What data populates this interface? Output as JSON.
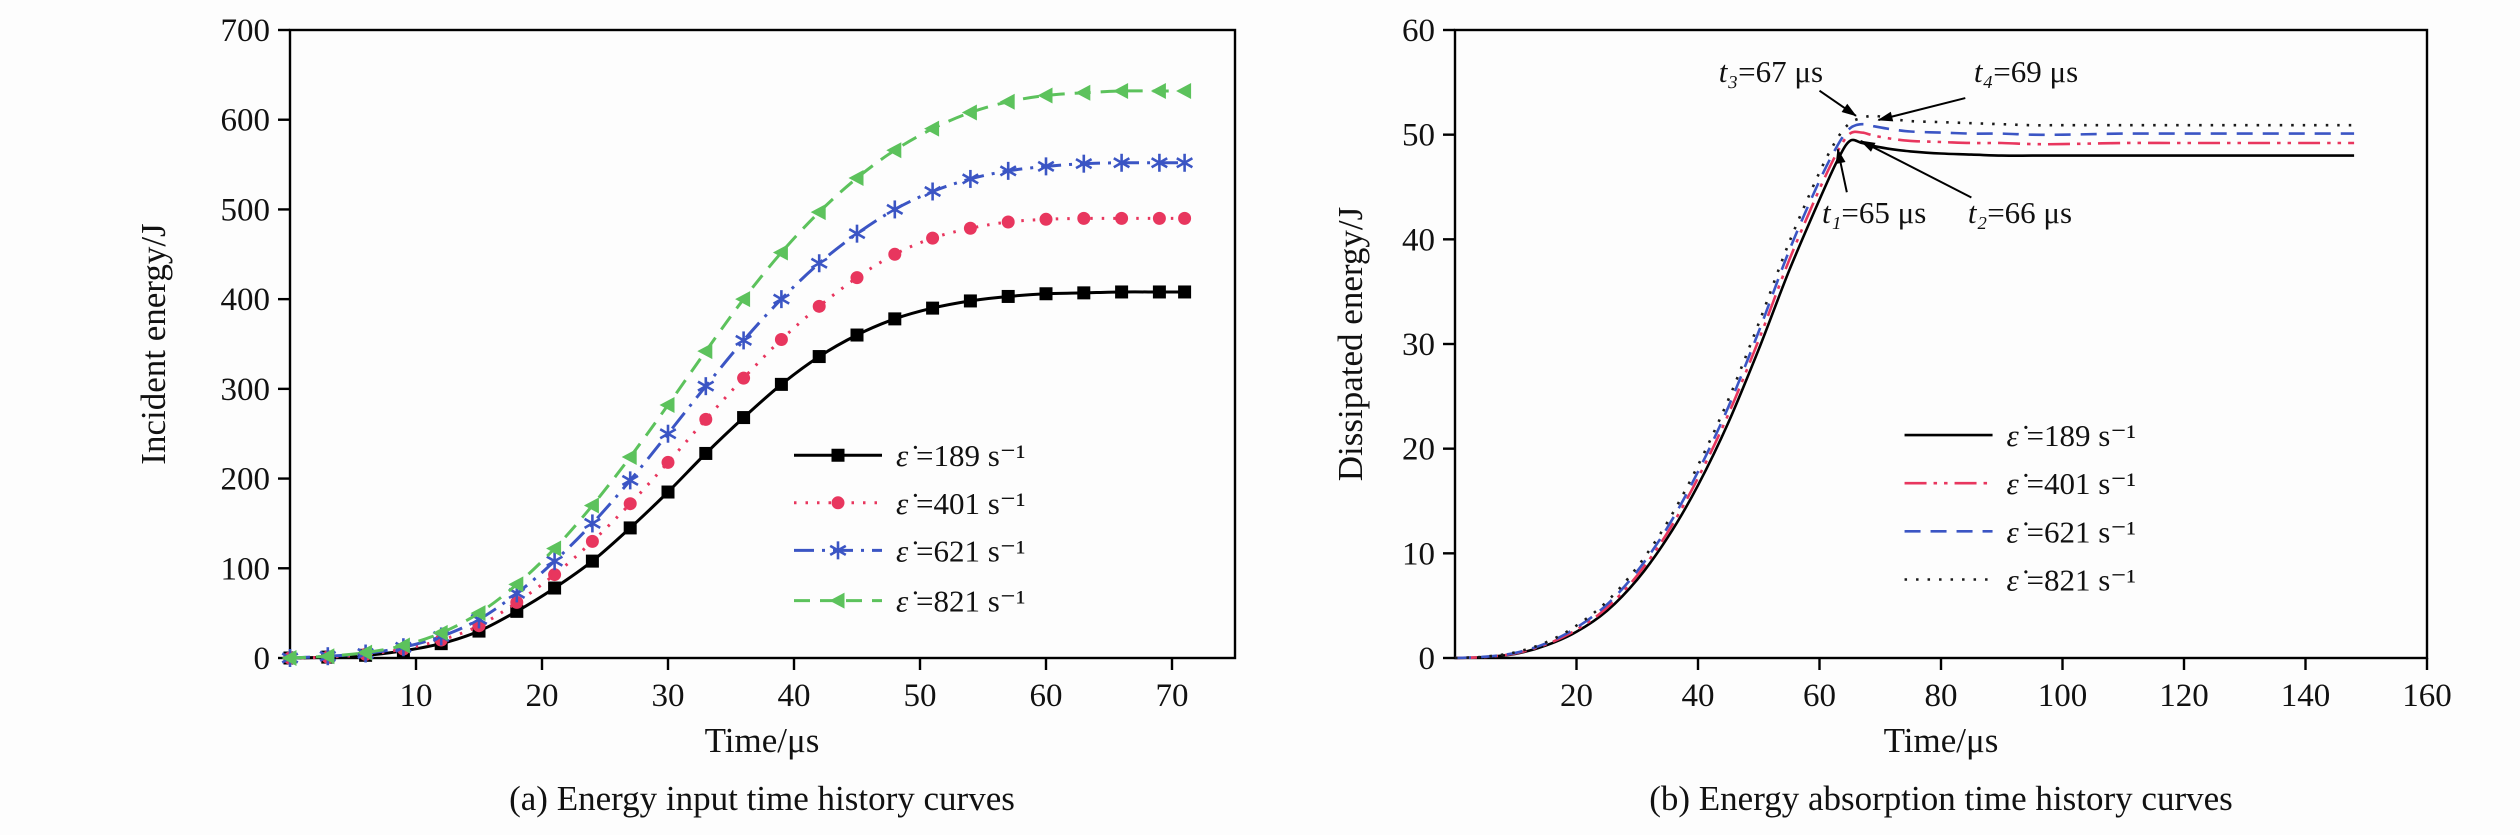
{
  "chart_data": [
    {
      "id": "a",
      "type": "line",
      "title": "(a) Energy input time history curves",
      "xlabel": "Time/μs",
      "ylabel": "Incident energy/J",
      "xlim": [
        0,
        75
      ],
      "ylim": [
        0,
        700
      ],
      "xticks": [
        10,
        20,
        30,
        40,
        50,
        60,
        70
      ],
      "yticks": [
        0,
        100,
        200,
        300,
        400,
        500,
        600,
        700
      ],
      "grid": false,
      "x": [
        0,
        3,
        6,
        9,
        12,
        15,
        18,
        21,
        24,
        27,
        30,
        33,
        36,
        39,
        42,
        45,
        48,
        51,
        54,
        57,
        60,
        63,
        66,
        69,
        71
      ],
      "series": [
        {
          "label_sym": "ε̇",
          "label_rest": " =189 s⁻¹",
          "color": "#000000",
          "dash": "solid",
          "marker": "square",
          "y": [
            0,
            1,
            3,
            8,
            16,
            30,
            52,
            78,
            108,
            145,
            185,
            228,
            268,
            305,
            336,
            360,
            378,
            390,
            398,
            403,
            406,
            407,
            408,
            408,
            408
          ]
        },
        {
          "label_sym": "ε̇",
          "label_rest": " =401 s⁻¹",
          "color": "#e8365e",
          "dash": "dotted",
          "marker": "circle",
          "y": [
            0,
            1,
            4,
            10,
            20,
            36,
            62,
            93,
            130,
            172,
            218,
            266,
            312,
            355,
            392,
            424,
            450,
            468,
            479,
            486,
            489,
            490,
            490,
            490,
            490
          ]
        },
        {
          "label_sym": "ε̇",
          "label_rest": " =621 s⁻¹",
          "color": "#3b55c4",
          "dash": "dashdot",
          "marker": "star",
          "y": [
            0,
            2,
            5,
            12,
            24,
            43,
            72,
            108,
            150,
            198,
            250,
            303,
            354,
            400,
            440,
            473,
            500,
            520,
            534,
            543,
            548,
            551,
            552,
            552,
            552
          ]
        },
        {
          "label_sym": "ε̇",
          "label_rest": " =821 s⁻¹",
          "color": "#5cc25c",
          "dash": "dashed",
          "marker": "triangle",
          "y": [
            0,
            2,
            6,
            14,
            28,
            50,
            82,
            122,
            170,
            224,
            282,
            342,
            400,
            452,
            497,
            535,
            566,
            590,
            608,
            620,
            627,
            630,
            632,
            632,
            632
          ]
        }
      ],
      "legend": {
        "x": 40,
        "rows": [
          226,
          173,
          120,
          64
        ],
        "position": "lower-right-inside"
      }
    },
    {
      "id": "b",
      "type": "line",
      "title": "(b) Energy absorption time history curves",
      "xlabel": "Time/μs",
      "ylabel": "Dissipated energy/J",
      "xlim": [
        0,
        160
      ],
      "ylim": [
        0,
        60
      ],
      "xticks": [
        20,
        40,
        60,
        80,
        100,
        120,
        140,
        160
      ],
      "yticks": [
        0,
        10,
        20,
        30,
        40,
        50,
        60
      ],
      "grid": false,
      "x": [
        0,
        5,
        10,
        15,
        20,
        25,
        30,
        35,
        40,
        45,
        50,
        55,
        60,
        63,
        65,
        67,
        69,
        72,
        75,
        80,
        85,
        90,
        95,
        100,
        110,
        120,
        130,
        140,
        148
      ],
      "series": [
        {
          "label_sym": "ε̇",
          "label_rest": " =189 s⁻¹",
          "color": "#000000",
          "dash": "solid",
          "marker": null,
          "y": [
            0,
            0.1,
            0.4,
            1.2,
            2.5,
            4.5,
            7.5,
            11.5,
            16.5,
            22.5,
            29.5,
            37,
            43.8,
            47.6,
            49.4,
            49.2,
            48.9,
            48.6,
            48.4,
            48.2,
            48.1,
            48,
            48,
            48,
            48,
            48,
            48,
            48,
            48
          ]
        },
        {
          "label_sym": "ε̇",
          "label_rest": " =401 s⁻¹",
          "color": "#e8365e",
          "dash": "dashdotdot",
          "marker": null,
          "y": [
            0,
            0.1,
            0.45,
            1.3,
            2.7,
            4.8,
            7.9,
            12,
            17.2,
            23.3,
            30.4,
            38,
            44.8,
            48.4,
            50.1,
            50.2,
            49.9,
            49.6,
            49.4,
            49.3,
            49.2,
            49.2,
            49.1,
            49.1,
            49.2,
            49.2,
            49.2,
            49.2,
            49.2
          ]
        },
        {
          "label_sym": "ε̇",
          "label_rest": " =621 s⁻¹",
          "color": "#3b55c4",
          "dash": "dashed",
          "marker": null,
          "y": [
            0,
            0.12,
            0.5,
            1.4,
            2.9,
            5.1,
            8.3,
            12.5,
            17.8,
            24,
            31.2,
            38.9,
            45.6,
            49,
            50.6,
            51,
            50.8,
            50.5,
            50.3,
            50.2,
            50.1,
            50.1,
            50,
            50,
            50.1,
            50.1,
            50.1,
            50.1,
            50.1
          ]
        },
        {
          "label_sym": "ε̇",
          "label_rest": " =821 s⁻¹",
          "color": "#1a1a1a",
          "dash": "dotted",
          "marker": null,
          "y": [
            0,
            0.13,
            0.55,
            1.5,
            3.1,
            5.4,
            8.7,
            13,
            18.4,
            24.7,
            32,
            39.7,
            46.4,
            49.7,
            51.1,
            51.6,
            51.8,
            51.5,
            51.3,
            51.2,
            51.1,
            51,
            50.9,
            50.9,
            50.9,
            50.9,
            50.9,
            50.9,
            50.9
          ]
        }
      ],
      "legend": {
        "x": 74,
        "rows": [
          21.3,
          16.7,
          12.1,
          7.5
        ],
        "position": "lower-right-inside"
      },
      "annotations": [
        {
          "sym": "t₃",
          "rest": "=67 μs",
          "tx": 52,
          "ty": 56,
          "x1": 60,
          "y1": 54.2,
          "x2": 66,
          "y2": 51.8
        },
        {
          "sym": "t₄",
          "rest": "=69 μs",
          "tx": 94,
          "ty": 56,
          "x1": 84,
          "y1": 53.5,
          "x2": 69.7,
          "y2": 51.4
        },
        {
          "sym": "t₁",
          "rest": "=65 μs",
          "tx": 69,
          "ty": 42.5,
          "x1": 64.5,
          "y1": 44.5,
          "x2": 63,
          "y2": 48.6
        },
        {
          "sym": "t₂",
          "rest": "=66 μs",
          "tx": 93,
          "ty": 42.5,
          "x1": 85,
          "y1": 44,
          "x2": 66.8,
          "y2": 49.4
        }
      ]
    }
  ]
}
